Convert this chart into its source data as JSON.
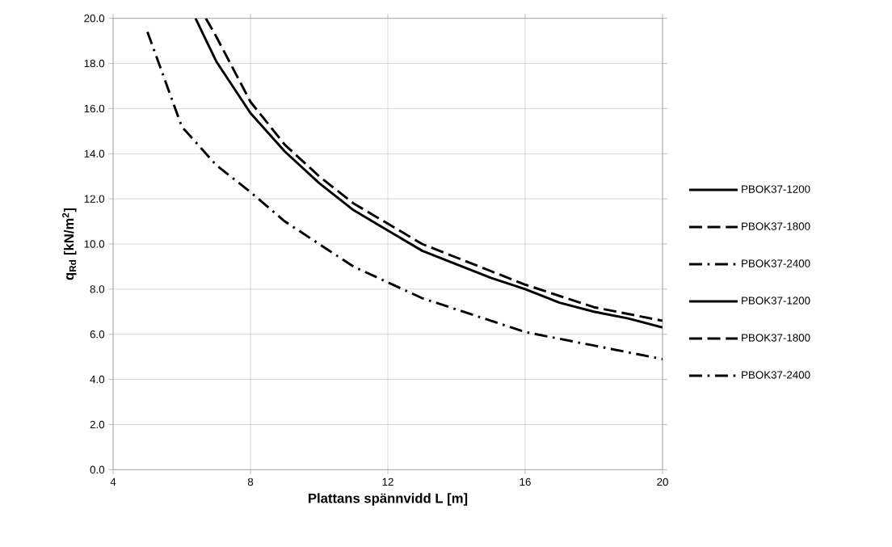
{
  "chart_data": {
    "type": "line",
    "xlabel": "Plattans spännvidd L [m]",
    "ylabel": "q$_{Rd}$ [kN/m$^{2}$]",
    "xlim": [
      4,
      20
    ],
    "ylim": [
      0,
      20
    ],
    "xticks": [
      4,
      8,
      12,
      16,
      20
    ],
    "yticks": [
      {
        "value": 0,
        "label": "0.0"
      },
      {
        "value": 2,
        "label": "2.0"
      },
      {
        "value": 4,
        "label": "4.0"
      },
      {
        "value": 6,
        "label": "6.0"
      },
      {
        "value": 8,
        "label": "8.0"
      },
      {
        "value": 10,
        "label": "10.0"
      },
      {
        "value": 12,
        "label": "12.0"
      },
      {
        "value": 14,
        "label": "14.0"
      },
      {
        "value": 16,
        "label": "16.0"
      },
      {
        "value": 18,
        "label": "18.0"
      },
      {
        "value": 20,
        "label": "20.0"
      }
    ],
    "grid": true,
    "legend": "right",
    "marker": "none",
    "series": [
      {
        "name": "PBOK37-1200",
        "color": "#000000",
        "line_style": "solid",
        "x": [
          6.4,
          7,
          8,
          9,
          10,
          11,
          12,
          13,
          14,
          15,
          16,
          17,
          18,
          19,
          20
        ],
        "values": [
          20,
          18.1,
          15.8,
          14.1,
          12.7,
          11.5,
          10.6,
          9.7,
          9.1,
          8.5,
          8.0,
          7.4,
          7.0,
          6.7,
          6.3
        ]
      },
      {
        "name": "PBOK37-1800",
        "color": "#000000",
        "line_style": "dashed",
        "x": [
          6.7,
          7,
          8,
          9,
          10,
          11,
          12,
          13,
          14,
          15,
          16,
          17,
          18,
          19,
          20
        ],
        "values": [
          20,
          19.2,
          16.3,
          14.4,
          13.0,
          11.8,
          10.9,
          10.0,
          9.4,
          8.8,
          8.2,
          7.7,
          7.2,
          6.9,
          6.6
        ]
      },
      {
        "name": "PBOK37-2400",
        "color": "#000000",
        "line_style": "dashdot",
        "x": [
          5,
          6,
          7,
          8,
          9,
          10,
          11,
          12,
          13,
          14,
          15,
          16,
          17,
          18,
          19,
          20
        ],
        "values": [
          19.4,
          15.2,
          13.5,
          12.3,
          11.0,
          10.0,
          9.0,
          8.3,
          7.6,
          7.1,
          6.6,
          6.1,
          5.8,
          5.5,
          5.2,
          4.9
        ]
      },
      {
        "name": "PBOK37-1200",
        "color": "#000000",
        "line_style": "solid",
        "values": [
          null
        ]
      },
      {
        "name": "PBOK37-1800",
        "color": "#000000",
        "line_style": "dashed",
        "values": [
          null
        ]
      },
      {
        "name": "PBOK37-2400",
        "color": "#000000",
        "line_style": "dashdot",
        "values": [
          null
        ]
      }
    ]
  }
}
